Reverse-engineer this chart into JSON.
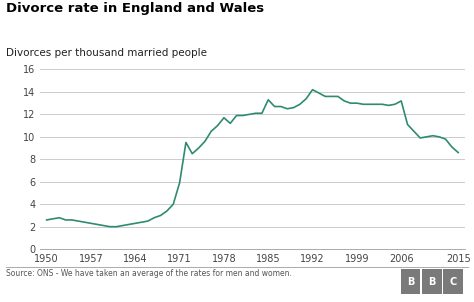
{
  "title": "Divorce rate in England and Wales",
  "subtitle": "Divorces per thousand married people",
  "source_text": "Source: ONS - We have taken an average of the rates for men and women.",
  "line_color": "#2e8b72",
  "background_color": "#ffffff",
  "grid_color": "#cccccc",
  "ylim": [
    0,
    16
  ],
  "yticks": [
    0,
    2,
    4,
    6,
    8,
    10,
    12,
    14,
    16
  ],
  "xticks": [
    1950,
    1957,
    1964,
    1971,
    1978,
    1985,
    1992,
    1999,
    2006,
    2015
  ],
  "xlim": [
    1949,
    2016
  ],
  "years": [
    1950,
    1951,
    1952,
    1953,
    1954,
    1955,
    1956,
    1957,
    1958,
    1959,
    1960,
    1961,
    1962,
    1963,
    1964,
    1965,
    1966,
    1967,
    1968,
    1969,
    1970,
    1971,
    1972,
    1973,
    1974,
    1975,
    1976,
    1977,
    1978,
    1979,
    1980,
    1981,
    1982,
    1983,
    1984,
    1985,
    1986,
    1987,
    1988,
    1989,
    1990,
    1991,
    1992,
    1993,
    1994,
    1995,
    1996,
    1997,
    1998,
    1999,
    2000,
    2001,
    2002,
    2003,
    2004,
    2005,
    2006,
    2007,
    2008,
    2009,
    2010,
    2011,
    2012,
    2013,
    2014,
    2015
  ],
  "values": [
    2.6,
    2.7,
    2.8,
    2.6,
    2.6,
    2.5,
    2.4,
    2.3,
    2.2,
    2.1,
    2.0,
    2.0,
    2.1,
    2.2,
    2.3,
    2.4,
    2.5,
    2.8,
    3.0,
    3.4,
    4.0,
    5.9,
    9.5,
    8.5,
    9.0,
    9.6,
    10.5,
    11.0,
    11.7,
    11.2,
    11.9,
    11.9,
    12.0,
    12.1,
    12.1,
    13.3,
    12.7,
    12.7,
    12.5,
    12.6,
    12.9,
    13.4,
    14.2,
    13.9,
    13.6,
    13.6,
    13.6,
    13.2,
    13.0,
    13.0,
    12.9,
    12.9,
    12.9,
    12.9,
    12.8,
    12.9,
    13.2,
    11.1,
    10.5,
    9.9,
    10.0,
    10.1,
    10.0,
    9.8,
    9.1,
    8.6
  ],
  "bbc_box_color": "#7a7a7a",
  "bbc_text_color": "#ffffff",
  "source_color": "#555555",
  "title_fontsize": 9.5,
  "subtitle_fontsize": 7.5,
  "tick_fontsize": 7,
  "source_fontsize": 5.5
}
